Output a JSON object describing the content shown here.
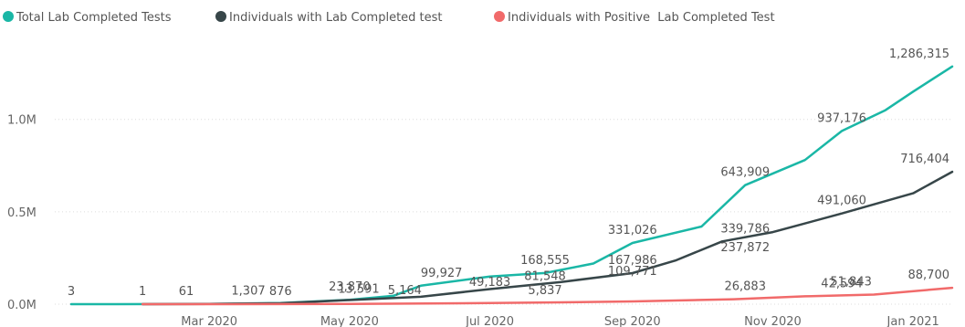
{
  "chart_data": {
    "type": "line",
    "title": "",
    "xlabel": "",
    "ylabel": "",
    "ylim": [
      0,
      1300000
    ],
    "grid": true,
    "legend_position": "top-left",
    "x_tick_labels": [
      "Mar 2020",
      "May 2020",
      "Jul 2020",
      "Sep 2020",
      "Nov 2020",
      "Jan 2021"
    ],
    "x_tick_dates": [
      "2020-03-01",
      "2020-05-01",
      "2020-07-01",
      "2020-09-01",
      "2020-11-01",
      "2021-01-01"
    ],
    "y_ticks": [
      {
        "value": 0,
        "label": "0.0M"
      },
      {
        "value": 500000,
        "label": "0.5M"
      },
      {
        "value": 1000000,
        "label": "1.0M"
      }
    ],
    "series": [
      {
        "name": "Total Lab Completed Tests",
        "color": "#1ab7a6",
        "points": [
          [
            "2020-01-01",
            3
          ],
          [
            "2020-01-20",
            3
          ],
          [
            "2020-02-10",
            500
          ],
          [
            "2020-03-01",
            1500
          ],
          [
            "2020-04-01",
            6000
          ],
          [
            "2020-05-01",
            23870
          ],
          [
            "2020-05-20",
            45000
          ],
          [
            "2020-06-01",
            99927
          ],
          [
            "2020-07-01",
            150000
          ],
          [
            "2020-07-25",
            168555
          ],
          [
            "2020-08-15",
            220000
          ],
          [
            "2020-09-01",
            331026
          ],
          [
            "2020-10-01",
            420000
          ],
          [
            "2020-10-20",
            643909
          ],
          [
            "2020-11-15",
            780000
          ],
          [
            "2020-12-01",
            937176
          ],
          [
            "2020-12-20",
            1050000
          ],
          [
            "2021-01-01",
            1150000
          ],
          [
            "2021-01-18",
            1286315
          ]
        ]
      },
      {
        "name": "Individuals with Lab Completed test",
        "color": "#374649",
        "points": [
          [
            "2020-02-01",
            1
          ],
          [
            "2020-03-01",
            1200
          ],
          [
            "2020-04-01",
            5164
          ],
          [
            "2020-05-01",
            22000
          ],
          [
            "2020-06-01",
            40000
          ],
          [
            "2020-07-01",
            81548
          ],
          [
            "2020-08-01",
            120000
          ],
          [
            "2020-09-01",
            167986
          ],
          [
            "2020-09-20",
            237872
          ],
          [
            "2020-10-10",
            339786
          ],
          [
            "2020-11-01",
            390000
          ],
          [
            "2020-12-01",
            491060
          ],
          [
            "2021-01-01",
            600000
          ],
          [
            "2021-01-18",
            716404
          ]
        ]
      },
      {
        "name": "Individuals with Positive  Lab Completed Test",
        "color": "#f16a6a",
        "points": [
          [
            "2020-02-01",
            1
          ],
          [
            "2020-03-01",
            200
          ],
          [
            "2020-05-01",
            1500
          ],
          [
            "2020-07-01",
            5837
          ],
          [
            "2020-08-01",
            10000
          ],
          [
            "2020-09-01",
            15000
          ],
          [
            "2020-10-15",
            26883
          ],
          [
            "2020-11-15",
            42594
          ],
          [
            "2020-12-15",
            51843
          ],
          [
            "2021-01-18",
            88700
          ]
        ]
      }
    ],
    "data_labels": [
      {
        "text": "3",
        "date": "2020-01-01",
        "value": 3,
        "series": 0
      },
      {
        "text": "1",
        "date": "2020-02-01",
        "value": 1,
        "series": 1
      },
      {
        "text": "61",
        "date": "2020-02-20",
        "value": 61,
        "series": 2
      },
      {
        "text": "1,307",
        "date": "2020-03-18",
        "value": 1307,
        "series": 0
      },
      {
        "text": "876",
        "date": "2020-04-01",
        "value": 876,
        "series": 1
      },
      {
        "text": "23,870",
        "date": "2020-05-01",
        "value": 23870,
        "series": 0
      },
      {
        "text": "13,591",
        "date": "2020-05-05",
        "value": 13591,
        "series": 1
      },
      {
        "text": "5,164",
        "date": "2020-05-25",
        "value": 5164,
        "series": 2
      },
      {
        "text": "99,927",
        "date": "2020-06-10",
        "value": 99927,
        "series": 0
      },
      {
        "text": "49,183",
        "date": "2020-07-01",
        "value": 49183,
        "series": 2
      },
      {
        "text": "168,555",
        "date": "2020-07-25",
        "value": 168555,
        "series": 0
      },
      {
        "text": "81,548",
        "date": "2020-07-25",
        "value": 81548,
        "series": 1
      },
      {
        "text": "5,837",
        "date": "2020-07-25",
        "value": 5837,
        "series": 2
      },
      {
        "text": "331,026",
        "date": "2020-09-01",
        "value": 331026,
        "series": 0
      },
      {
        "text": "167,986",
        "date": "2020-09-01",
        "value": 167986,
        "series": 1
      },
      {
        "text": "109,771",
        "date": "2020-09-01",
        "value": 109771,
        "series": 2
      },
      {
        "text": "643,909",
        "date": "2020-10-20",
        "value": 643909,
        "series": 0
      },
      {
        "text": "339,786",
        "date": "2020-10-20",
        "value": 339786,
        "series": 1
      },
      {
        "text": "237,872",
        "date": "2020-10-20",
        "value": 237872,
        "series": 1
      },
      {
        "text": "26,883",
        "date": "2020-10-20",
        "value": 26883,
        "series": 2
      },
      {
        "text": "937,176",
        "date": "2020-12-01",
        "value": 937176,
        "series": 0
      },
      {
        "text": "491,060",
        "date": "2020-12-01",
        "value": 491060,
        "series": 1
      },
      {
        "text": "51,843",
        "date": "2020-12-05",
        "value": 51843,
        "series": 2
      },
      {
        "text": "42,594",
        "date": "2020-12-01",
        "value": 42594,
        "series": 2
      },
      {
        "text": "1,286,315",
        "date": "2021-01-18",
        "value": 1286315,
        "series": 0
      },
      {
        "text": "716,404",
        "date": "2021-01-18",
        "value": 716404,
        "series": 1
      },
      {
        "text": "88,700",
        "date": "2021-01-18",
        "value": 88700,
        "series": 2
      }
    ]
  }
}
